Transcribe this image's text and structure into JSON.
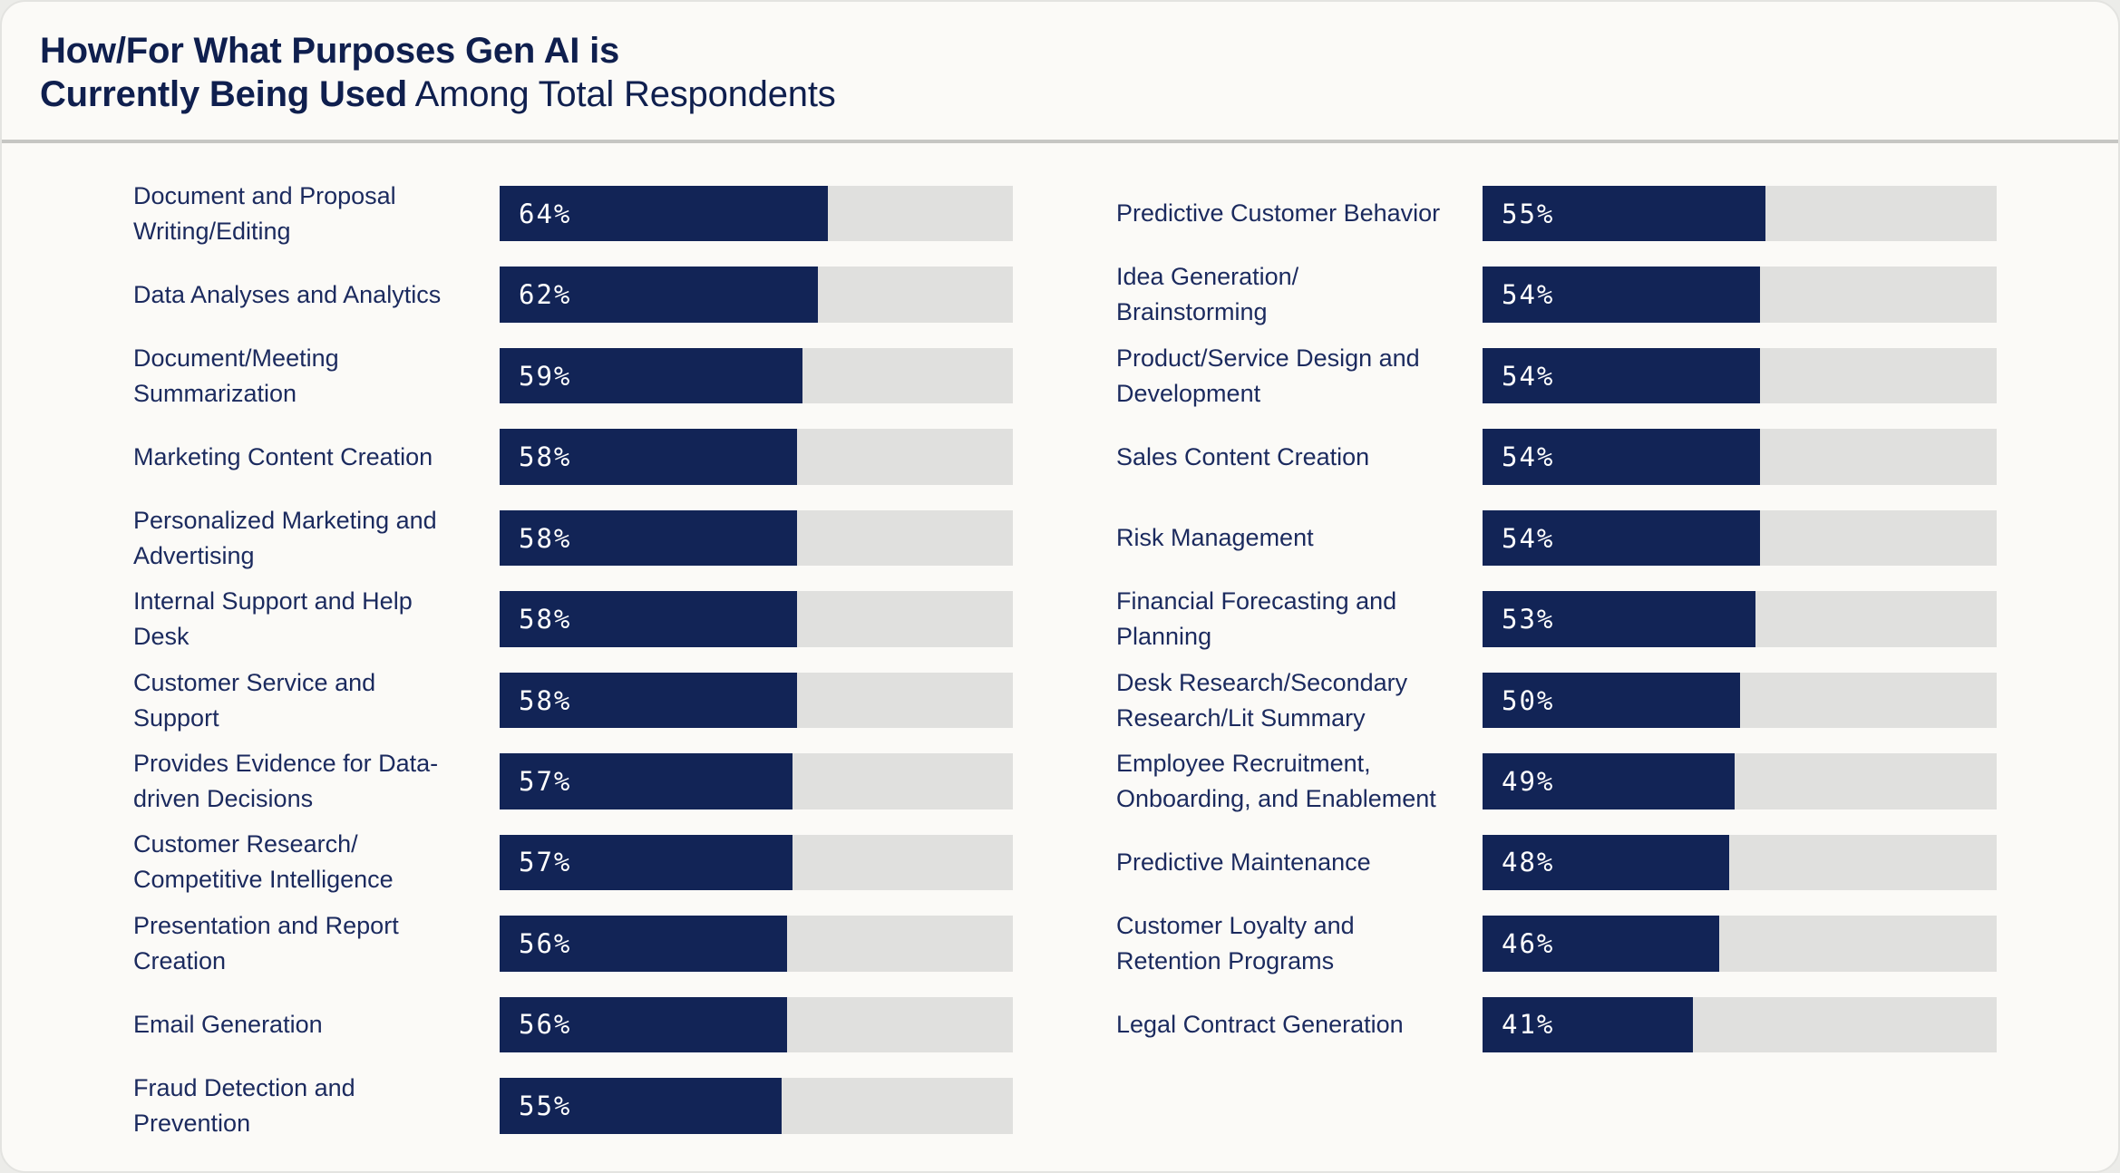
{
  "title": {
    "line1_bold": "How/For What Purposes Gen AI is",
    "line2_bold": "Currently Being Used",
    "line2_regular": " Among Total Respondents"
  },
  "colors": {
    "bar_fill": "#122456",
    "bar_track": "#E0E0DE",
    "title_text": "#0F1F4E",
    "label_text": "#1B2A5E",
    "value_text": "#FFFFFF",
    "card_background": "#FBFAF7",
    "page_background": "#ECECE9",
    "divider": "#C6C6C3"
  },
  "chart_data": {
    "type": "bar",
    "orientation": "horizontal",
    "title": "How/For What Purposes Gen AI is Currently Being Used Among Total Respondents",
    "unit": "%",
    "xlim": [
      0,
      100
    ],
    "value_label_position": "inside-left",
    "grid": false,
    "legend": false,
    "columns": [
      {
        "rows": [
          {
            "label": "Document and Proposal\nWriting/Editing",
            "value": 64
          },
          {
            "label": "Data Analyses and Analytics",
            "value": 62
          },
          {
            "label": "Document/Meeting\nSummarization",
            "value": 59
          },
          {
            "label": "Marketing Content Creation",
            "value": 58
          },
          {
            "label": "Personalized Marketing and\nAdvertising",
            "value": 58
          },
          {
            "label": "Internal Support and Help\nDesk",
            "value": 58
          },
          {
            "label": "Customer Service and\nSupport",
            "value": 58
          },
          {
            "label": "Provides Evidence for Data-\ndriven Decisions",
            "value": 57
          },
          {
            "label": "Customer Research/\nCompetitive Intelligence",
            "value": 57
          },
          {
            "label": "Presentation and Report\nCreation",
            "value": 56
          },
          {
            "label": "Email Generation",
            "value": 56
          },
          {
            "label": "Fraud Detection and\nPrevention",
            "value": 55
          }
        ]
      },
      {
        "rows": [
          {
            "label": "Predictive Customer Behavior",
            "value": 55
          },
          {
            "label": "Idea Generation/\nBrainstorming",
            "value": 54
          },
          {
            "label": "Product/Service Design and\nDevelopment",
            "value": 54
          },
          {
            "label": "Sales Content Creation",
            "value": 54
          },
          {
            "label": "Risk Management",
            "value": 54
          },
          {
            "label": "Financial Forecasting and\nPlanning",
            "value": 53
          },
          {
            "label": "Desk Research/Secondary\nResearch/Lit Summary",
            "value": 50
          },
          {
            "label": "Employee Recruitment,\nOnboarding, and Enablement",
            "value": 49
          },
          {
            "label": "Predictive Maintenance",
            "value": 48
          },
          {
            "label": "Customer Loyalty and\nRetention Programs",
            "value": 46
          },
          {
            "label": "Legal Contract Generation",
            "value": 41
          }
        ]
      }
    ]
  }
}
